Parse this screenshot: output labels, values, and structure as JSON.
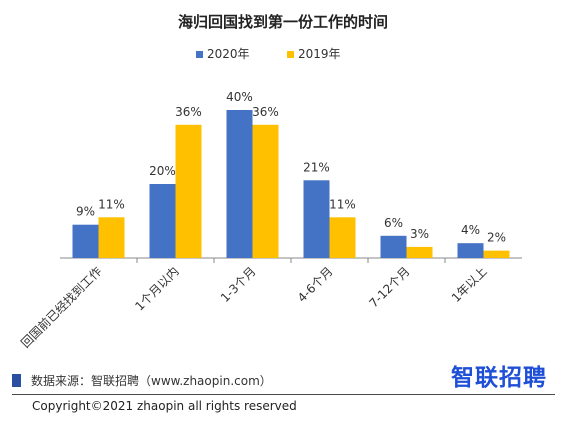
{
  "chart_data": {
    "type": "bar",
    "title": "海归回国找到第一份工作的时间",
    "categories": [
      "回国前已经找到工作",
      "1个月以内",
      "1-3个月",
      "4-6个月",
      "7-12个月",
      "1年以上"
    ],
    "series": [
      {
        "name": "2020年",
        "values": [
          9,
          20,
          40,
          21,
          6,
          4
        ],
        "labels": [
          "9%",
          "20%",
          "40%",
          "21%",
          "6%",
          "4%"
        ]
      },
      {
        "name": "2019年",
        "values": [
          11,
          36,
          36,
          11,
          3,
          2
        ],
        "labels": [
          "11%",
          "36%",
          "36%",
          "11%",
          "3%",
          "2%"
        ]
      }
    ],
    "ylim": [
      0,
      40
    ],
    "unit": "%",
    "grid": false,
    "legend_position": "top-center",
    "colors": {
      "2020年": "#4472C4",
      "2019年": "#FFC000"
    }
  },
  "footer": {
    "source": "数据来源：智联招聘（www.zhaopin.com）",
    "source_mark_color": "#2b4fa0",
    "brand": "智联招聘",
    "brand_color": "#1f4fd6",
    "copyright": "Copyright©2021 zhaopin all rights reserved"
  }
}
